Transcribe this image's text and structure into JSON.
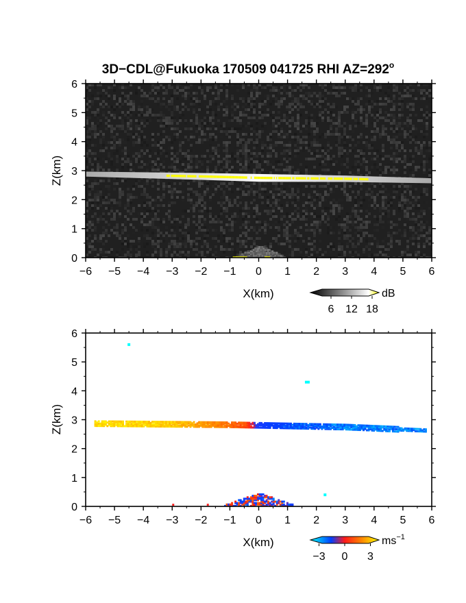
{
  "title": "3D−CDL@Fukuoka 170509 041725 RHI AZ=292",
  "title_superscript": "o",
  "chart_data": [
    {
      "type": "heatmap",
      "field": "backscatter intensity",
      "xlabel": "X(km)",
      "ylabel": "Z(km)",
      "xlim": [
        -6,
        6
      ],
      "ylim": [
        0,
        6
      ],
      "xticks": [
        "−6",
        "−5",
        "−4",
        "−3",
        "−2",
        "−1",
        "0",
        "1",
        "2",
        "3",
        "4",
        "5",
        "6"
      ],
      "yticks": [
        "0",
        "1",
        "2",
        "3",
        "4",
        "5",
        "6"
      ],
      "background": "dark grey noise",
      "features": [
        {
          "name": "cloud layer",
          "x_range": [
            -6,
            6
          ],
          "z_center_at_x": [
            [
              -6,
              2.88
            ],
            [
              -2,
              2.8
            ],
            [
              0,
              2.75
            ],
            [
              3,
              2.72
            ],
            [
              6,
              2.65
            ]
          ],
          "thickness_km": 0.12,
          "peak_value_dB": 18
        },
        {
          "name": "near-ground echo",
          "x_range": [
            -0.8,
            0.9
          ],
          "z_range": [
            0,
            0.4
          ]
        }
      ],
      "colorbar": {
        "label": "dB",
        "ticks": [
          "6",
          "12",
          "18"
        ],
        "range": [
          0,
          20
        ],
        "colors": [
          "#000000",
          "#ffffff",
          "#ffff00"
        ]
      }
    },
    {
      "type": "heatmap",
      "field": "radial velocity",
      "xlabel": "X(km)",
      "ylabel": "Z(km)",
      "xlim": [
        -6,
        6
      ],
      "ylim": [
        0,
        6
      ],
      "xticks": [
        "−6",
        "−5",
        "−4",
        "−3",
        "−2",
        "−1",
        "0",
        "1",
        "2",
        "3",
        "4",
        "5",
        "6"
      ],
      "yticks": [
        "0",
        "1",
        "2",
        "3",
        "4",
        "5",
        "6"
      ],
      "features": [
        {
          "name": "cloud layer velocity",
          "x_range": [
            -5.7,
            5.8
          ],
          "z_center_at_x": [
            [
              -5.7,
              2.86
            ],
            [
              -1,
              2.82
            ],
            [
              0,
              2.8
            ],
            [
              3,
              2.74
            ],
            [
              5.8,
              2.62
            ]
          ],
          "velocity_at_x_ms": [
            [
              -5.5,
              3.5
            ],
            [
              -3,
              3.2
            ],
            [
              -1.5,
              2
            ],
            [
              -0.5,
              1
            ],
            [
              0,
              -1.5
            ],
            [
              1,
              -2.5
            ],
            [
              3,
              -3
            ],
            [
              5.5,
              -3
            ]
          ]
        },
        {
          "name": "near-ground echo",
          "x_range": [
            -1.2,
            1.2
          ],
          "z_range": [
            0,
            0.45
          ],
          "velocity_mix_ms": [
            -3,
            1.5
          ]
        },
        {
          "name": "isolated points",
          "points": [
            [
              -4.5,
              5.6
            ],
            [
              1.65,
              4.3
            ],
            [
              2.3,
              0.4
            ]
          ]
        }
      ],
      "colorbar": {
        "label": "ms",
        "label_superscript": "−1",
        "ticks": [
          "−3",
          "0",
          "3"
        ],
        "range": [
          -4,
          4
        ],
        "colors": [
          "#00ffff",
          "#0050ff",
          "#ff2020",
          "#ff8800",
          "#ffff00"
        ]
      }
    }
  ]
}
